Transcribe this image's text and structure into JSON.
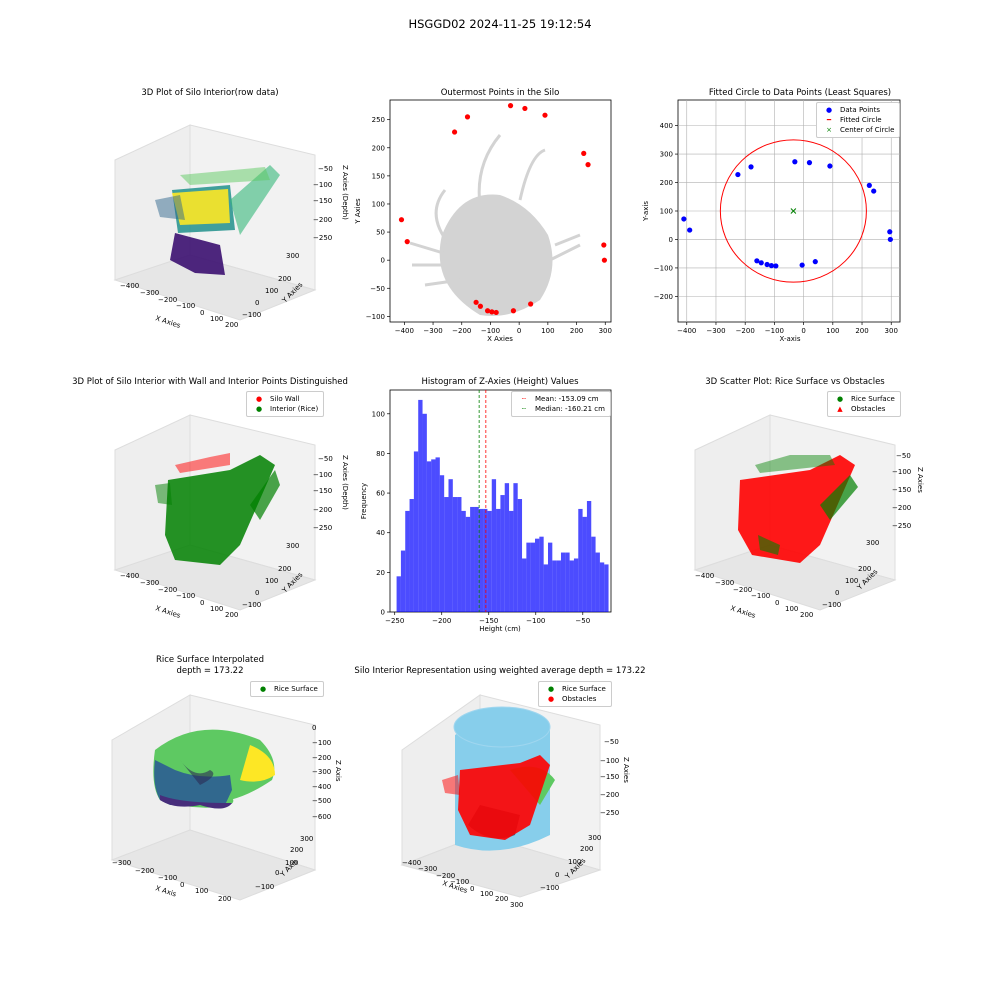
{
  "figure": {
    "suptitle": "HSGGD02 2024-11-25 19:12:54"
  },
  "panels": {
    "p1": {
      "title": "3D Plot of Silo Interior(row data)",
      "xlabel": "X Axies",
      "ylabel": "Y Axies",
      "zlabel": "Z Axies (Depth)",
      "xticks": [
        "−400",
        "−300",
        "−200",
        "−100",
        "0",
        "100",
        "200",
        "300"
      ],
      "yticks": [
        "−100",
        "−50",
        "0",
        "50",
        "100",
        "150",
        "200",
        "250",
        "300"
      ],
      "zticks": [
        "−50",
        "−100",
        "−150",
        "−200",
        "−250"
      ]
    },
    "p2": {
      "title": "Outermost Points in the Silo",
      "xlabel": "X Axies",
      "ylabel": "Y Axies"
    },
    "p3": {
      "title": "Fitted Circle to Data Points (Least Squares)",
      "xlabel": "X-axis",
      "ylabel": "Y-axis",
      "legend": [
        "Data Points",
        "Fitted Circle",
        "Center of Circle"
      ]
    },
    "p4": {
      "title": "3D Plot of Silo Interior with Wall and Interior Points Distinguished",
      "xlabel": "X Axies",
      "ylabel": "Y Axies",
      "zlabel": "Z Axies (Depth)",
      "legend": [
        "Silo Wall",
        "Interior (Rice)"
      ],
      "xticks": [
        "−400",
        "−300",
        "−200",
        "−100",
        "0",
        "100",
        "200",
        "300"
      ],
      "yticks": [
        "−100",
        "−50",
        "0",
        "50",
        "100",
        "150",
        "200",
        "250",
        "300"
      ],
      "zticks": [
        "−50",
        "−100",
        "−150",
        "−200",
        "−250"
      ]
    },
    "p5": {
      "title": "Histogram of Z-Axies (Height) Values",
      "xlabel": "Height (cm)",
      "ylabel": "Frequency",
      "legend": [
        "Mean: -153.09 cm",
        "Median: -160.21 cm"
      ]
    },
    "p6": {
      "title": "3D Scatter Plot: Rice Surface vs Obstacles",
      "xlabel": "X Axies",
      "ylabel": "Y Axies",
      "zlabel": "Z Axies",
      "legend": [
        "Rice Surface",
        "Obstacles"
      ],
      "xticks": [
        "−400",
        "−300",
        "−200",
        "−100",
        "0",
        "100",
        "200",
        "300"
      ],
      "yticks": [
        "−100",
        "−50",
        "0",
        "50",
        "100",
        "150",
        "200",
        "250",
        "300"
      ],
      "zticks": [
        "−50",
        "−100",
        "−150",
        "−200",
        "−250"
      ]
    },
    "p7": {
      "title_line1": "Rice Surface Interpolated",
      "title_line2": "depth = 173.22",
      "xlabel": "X Axis",
      "ylabel": "Y Axis",
      "zlabel": "Z Axis",
      "legend": [
        "Rice Surface"
      ],
      "xticks": [
        "−300",
        "−200",
        "−100",
        "0",
        "100",
        "200"
      ],
      "yticks": [
        "−100",
        "0",
        "100",
        "200",
        "300"
      ],
      "zticks": [
        "0",
        "−100",
        "−200",
        "−300",
        "−400",
        "−500",
        "−600"
      ]
    },
    "p8": {
      "title": "Silo Interior Representation using weighted average depth = 173.22",
      "xlabel": "X Axies",
      "ylabel": "Y Axies",
      "zlabel": "Z Axies",
      "legend": [
        "Rice Surface",
        "Obstacles"
      ],
      "xticks": [
        "−400",
        "−300",
        "−200",
        "−100",
        "0",
        "100",
        "200",
        "300"
      ],
      "yticks": [
        "−100",
        "0",
        "100",
        "200",
        "300"
      ],
      "zticks": [
        "−50",
        "−100",
        "−150",
        "−200",
        "−250"
      ]
    }
  },
  "colors": {
    "red": "#ff0000",
    "green": "#008000",
    "blue": "#0000ff",
    "gray": "#d3d3d3",
    "hist": "#0000ff",
    "skyblue": "#87ceeb"
  },
  "chart_data": [
    {
      "id": "outermost",
      "type": "scatter",
      "xlim": [
        -450,
        320
      ],
      "ylim": [
        -110,
        285
      ],
      "xticks": [
        -400,
        -300,
        -200,
        -100,
        0,
        100,
        200,
        300
      ],
      "yticks": [
        -100,
        -50,
        0,
        50,
        100,
        150,
        200,
        250
      ],
      "outermost_points": [
        [
          -410,
          72
        ],
        [
          -390,
          33
        ],
        [
          -225,
          228
        ],
        [
          -180,
          255
        ],
        [
          -150,
          -75
        ],
        [
          -135,
          -82
        ],
        [
          -110,
          -90
        ],
        [
          -95,
          -92
        ],
        [
          -80,
          -93
        ],
        [
          -20,
          -90
        ],
        [
          -30,
          275
        ],
        [
          20,
          270
        ],
        [
          90,
          258
        ],
        [
          40,
          -78
        ],
        [
          225,
          190
        ],
        [
          240,
          170
        ],
        [
          295,
          27
        ],
        [
          297,
          0
        ]
      ]
    },
    {
      "id": "fitted_circle",
      "type": "scatter",
      "xlim": [
        -430,
        330
      ],
      "ylim": [
        -290,
        490
      ],
      "xticks": [
        -400,
        -300,
        -200,
        -100,
        0,
        100,
        200,
        300
      ],
      "yticks": [
        -200,
        -100,
        0,
        100,
        200,
        300,
        400
      ],
      "data_points": [
        [
          -410,
          72
        ],
        [
          -390,
          33
        ],
        [
          -225,
          228
        ],
        [
          -180,
          255
        ],
        [
          -160,
          -75
        ],
        [
          -145,
          -82
        ],
        [
          -125,
          -88
        ],
        [
          -110,
          -92
        ],
        [
          -95,
          -93
        ],
        [
          -30,
          273
        ],
        [
          20,
          270
        ],
        [
          90,
          258
        ],
        [
          -5,
          -90
        ],
        [
          40,
          -78
        ],
        [
          225,
          190
        ],
        [
          240,
          170
        ],
        [
          295,
          27
        ],
        [
          297,
          0
        ]
      ],
      "circle_center": [
        -35,
        100
      ],
      "circle_radius": 250
    },
    {
      "id": "histogram",
      "type": "bar",
      "xlim": [
        -255,
        -20
      ],
      "ylim": [
        0,
        112
      ],
      "xticks": [
        -250,
        -200,
        -150,
        -100,
        -50
      ],
      "yticks": [
        0,
        20,
        40,
        60,
        80,
        100
      ],
      "bin_start": -248,
      "bin_width": 4.6,
      "values": [
        18,
        31,
        51,
        57,
        81,
        107,
        100,
        76,
        77,
        78,
        69,
        58,
        67,
        58,
        58,
        51,
        48,
        53,
        53,
        52,
        52,
        51,
        67,
        52,
        59,
        65,
        51,
        65,
        57,
        27,
        35,
        35,
        37,
        38,
        24,
        35,
        26,
        26,
        30,
        30,
        26,
        27,
        52,
        48,
        56,
        38,
        30,
        25,
        24
      ],
      "mean": -153.09,
      "median": -160.21
    }
  ]
}
